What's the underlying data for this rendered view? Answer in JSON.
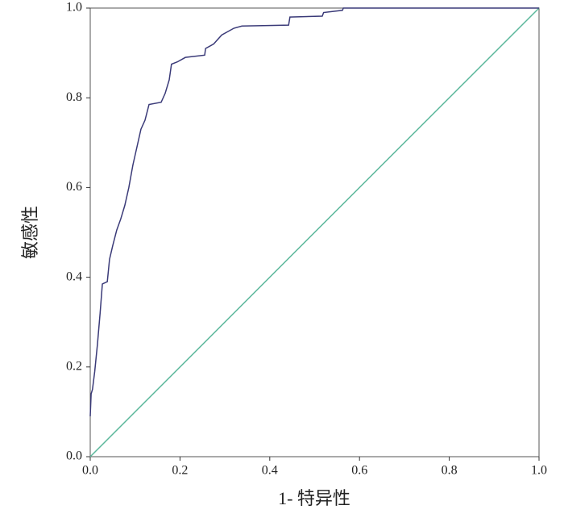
{
  "chart_data": {
    "type": "line",
    "xlabel": "1- 特异性",
    "ylabel": "敏感性",
    "xlim": [
      0,
      1
    ],
    "ylim": [
      0,
      1
    ],
    "xticks": [
      {
        "value": 0,
        "label": "0.0"
      },
      0.2,
      0.4,
      0.6,
      0.8,
      {
        "value": 1,
        "label": "1.0"
      }
    ],
    "yticks": [
      {
        "value": 0,
        "label": "0.0"
      },
      0.2,
      0.4,
      0.6,
      0.8,
      {
        "value": 1,
        "label": "1.0"
      }
    ],
    "series": [
      {
        "color": "#3a3a78",
        "x": [
          0,
          0.002,
          0.005,
          0.01,
          0.016,
          0.022,
          0.027,
          0.038,
          0.043,
          0.05,
          0.059,
          0.068,
          0.077,
          0.086,
          0.095,
          0.104,
          0.113,
          0.122,
          0.131,
          0.158,
          0.167,
          0.176,
          0.181,
          0.194,
          0.212,
          0.255,
          0.257,
          0.275,
          0.293,
          0.32,
          0.338,
          0.442,
          0.445,
          0.517,
          0.52,
          0.562,
          0.564,
          1
        ],
        "values": [
          0.09,
          0.14,
          0.15,
          0.19,
          0.25,
          0.32,
          0.385,
          0.39,
          0.44,
          0.47,
          0.505,
          0.53,
          0.56,
          0.6,
          0.65,
          0.69,
          0.73,
          0.75,
          0.785,
          0.79,
          0.81,
          0.84,
          0.875,
          0.88,
          0.89,
          0.895,
          0.91,
          0.92,
          0.94,
          0.955,
          0.96,
          0.962,
          0.98,
          0.982,
          0.99,
          0.995,
          1,
          1
        ]
      },
      {
        "color": "#5cb89c",
        "x": [
          0,
          1
        ],
        "values": [
          0,
          1
        ]
      }
    ]
  }
}
